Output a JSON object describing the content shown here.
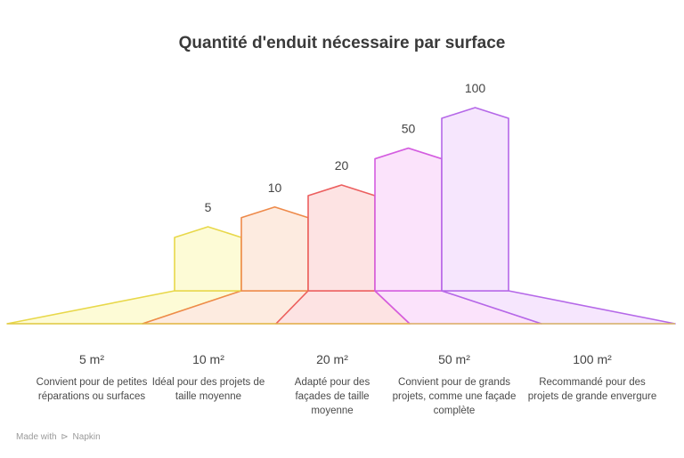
{
  "chart_data": {
    "type": "bar",
    "title": "Quantité d'enduit nécessaire par surface",
    "categories": [
      "5 m²",
      "10 m²",
      "20 m²",
      "50 m²",
      "100 m²"
    ],
    "values": [
      5,
      10,
      20,
      50,
      100
    ],
    "value_labels": [
      "5",
      "10",
      "20",
      "50",
      "100"
    ],
    "descriptions": [
      "Convient pour de petites réparations ou surfaces",
      "Idéal pour des projets de taille moyenne",
      "Adapté pour des façades de taille moyenne",
      "Convient pour de grands projets, comme une façade complète",
      "Recommandé pour des projets de grande envergure"
    ],
    "colors": [
      {
        "stroke": "#e8d84a",
        "fill": "#fdfbd6"
      },
      {
        "stroke": "#ee8a4a",
        "fill": "#fdebe0"
      },
      {
        "stroke": "#ec5f5f",
        "fill": "#fde3e3"
      },
      {
        "stroke": "#d45de0",
        "fill": "#fbe3fb"
      },
      {
        "stroke": "#b568e8",
        "fill": "#f6e6fd"
      }
    ],
    "grid": false,
    "legend": "none"
  },
  "footer": {
    "made_with": "Made with",
    "brand": "Napkin",
    "brand_icon": "napkin-logo-icon"
  }
}
